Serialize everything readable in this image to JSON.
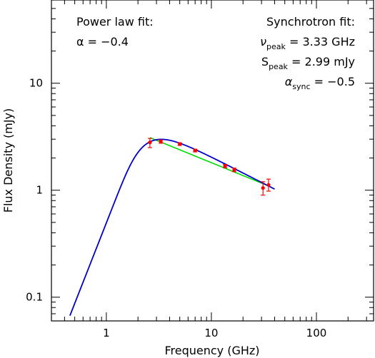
{
  "chart_data": {
    "type": "scatter",
    "xlabel": "Frequency (GHz)",
    "ylabel": "Flux Density (mJy)",
    "x_scale": "log",
    "y_scale": "log",
    "xlim": [
      0.3,
      350
    ],
    "ylim": [
      0.06,
      60
    ],
    "x_tick_labels": [
      {
        "value": 1,
        "label": "1"
      },
      {
        "value": 10,
        "label": "10"
      },
      {
        "value": 100,
        "label": "100"
      }
    ],
    "y_tick_labels": [
      {
        "value": 0.1,
        "label": "0.1"
      },
      {
        "value": 1,
        "label": "1"
      },
      {
        "value": 10,
        "label": "10"
      }
    ],
    "grid": false,
    "annotations": {
      "powerlaw_title": "Power law fit:",
      "powerlaw_alpha": "α = −0.4",
      "sync_title": "Synchrotron fit:",
      "nu_peak_symbol": "ν",
      "peak_subscript": "peak",
      "nu_peak_value": " = 3.33 GHz",
      "s_peak_symbol": "S",
      "s_peak_value": " = 2.99 mJy",
      "alpha_sync_symbol": "α",
      "sync_subscript": "sync",
      "alpha_sync_value": " = −0.5"
    },
    "series": [
      {
        "kind": "points",
        "color": "#ff0000",
        "points": [
          {
            "x": 2.6,
            "y": 2.8,
            "yerr": [
              2.5,
              3.05
            ]
          },
          {
            "x": 3.3,
            "y": 2.85,
            "yerr": [
              2.75,
              2.95
            ]
          },
          {
            "x": 5.0,
            "y": 2.7,
            "yerr": [
              2.62,
              2.78
            ]
          },
          {
            "x": 7.0,
            "y": 2.35,
            "yerr": [
              2.28,
              2.42
            ]
          },
          {
            "x": 13.5,
            "y": 1.68,
            "yerr": [
              1.62,
              1.74
            ]
          },
          {
            "x": 16.5,
            "y": 1.55,
            "yerr": [
              1.49,
              1.61
            ]
          },
          {
            "x": 31.0,
            "y": 1.05,
            "yerr": [
              0.9,
              1.2
            ]
          },
          {
            "x": 35.0,
            "y": 1.12,
            "yerr": [
              0.98,
              1.27
            ]
          }
        ]
      },
      {
        "kind": "powerlaw_fit",
        "color": "#00dd00",
        "alpha": -0.4,
        "x_range": [
          2.6,
          35
        ],
        "y_at_x_range_start": 3.1
      },
      {
        "kind": "synchrotron_fit",
        "color": "#0000cc",
        "nu_peak": 3.33,
        "s_peak": 2.99,
        "alpha_thin": -0.5,
        "x_range": [
          0.45,
          40
        ]
      }
    ]
  }
}
